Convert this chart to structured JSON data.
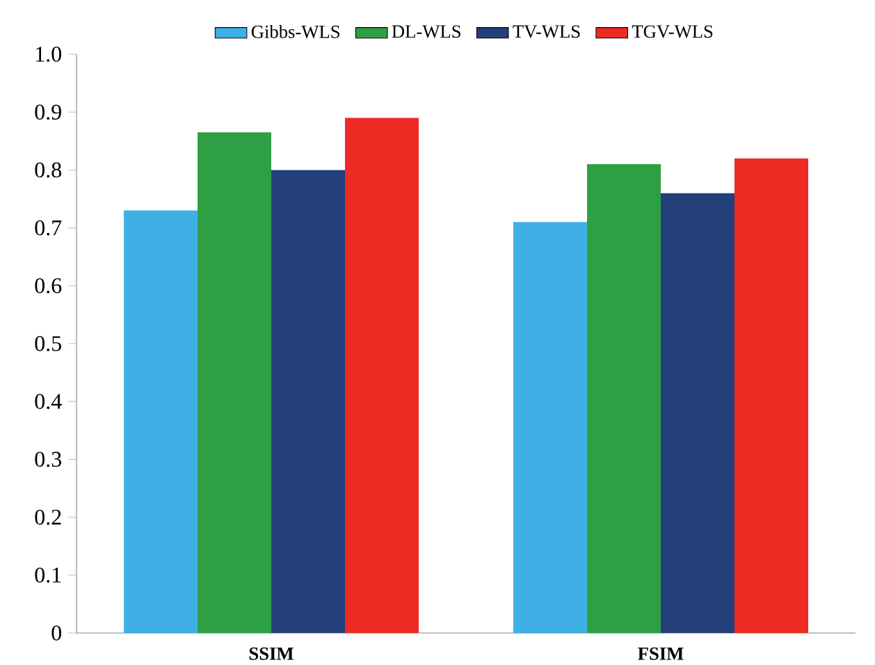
{
  "chart_data": {
    "type": "bar",
    "categories": [
      "SSIM",
      "FSIM"
    ],
    "series": [
      {
        "name": "Gibbs-WLS",
        "color": "#3fb0e6",
        "values": [
          0.73,
          0.71
        ]
      },
      {
        "name": "DL-WLS",
        "color": "#2ea043",
        "values": [
          0.865,
          0.81
        ]
      },
      {
        "name": "TV-WLS",
        "color": "#23407a",
        "values": [
          0.8,
          0.76
        ]
      },
      {
        "name": "TGV-WLS",
        "color": "#ee2a24",
        "values": [
          0.89,
          0.82
        ]
      }
    ],
    "ylim": [
      0,
      1.0
    ],
    "yticks": [
      {
        "value": 0,
        "label": "0"
      },
      0.1,
      0.2,
      0.3,
      0.4,
      0.5,
      0.6,
      0.7,
      0.8,
      0.9,
      {
        "value": 1.0,
        "label": "1.0"
      }
    ],
    "grid": false,
    "legend": "top"
  }
}
